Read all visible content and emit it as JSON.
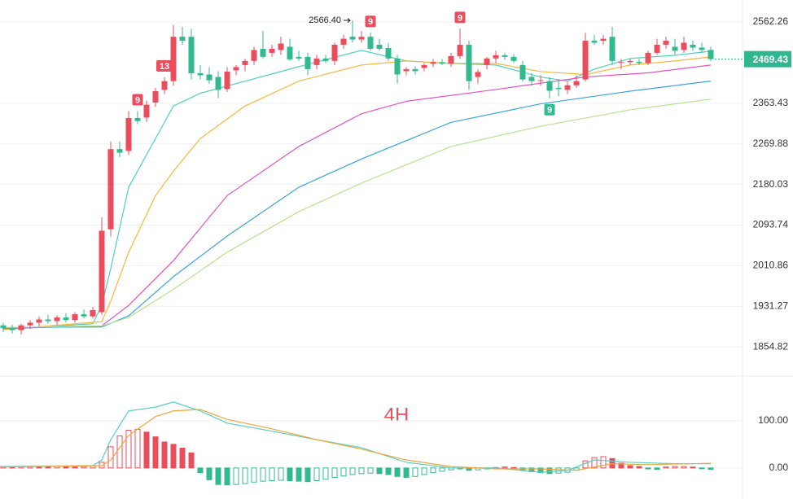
{
  "chart_data": [
    {
      "type": "candlestick",
      "scale": "log",
      "grid": true,
      "up_color": "#eb4d5c",
      "down_color": "#33b98f",
      "ylim": [
        1812,
        2619
      ],
      "yticks": [
        2562.26,
        2363.43,
        2269.88,
        2180.03,
        2093.74,
        2010.86,
        1931.27,
        1854.82
      ],
      "last_price": 2469.43,
      "last_price_color": "#2fb68e",
      "high_label": {
        "index": 39,
        "value": 2566.4,
        "label": "2566.40"
      },
      "markers": [
        {
          "index": 15,
          "text": "9",
          "position": "above",
          "color": "#eb4d5c"
        },
        {
          "index": 18,
          "text": "13",
          "position": "above",
          "color": "#eb4d5c"
        },
        {
          "index": 41,
          "text": "9",
          "position": "above",
          "color": "#eb4d5c"
        },
        {
          "index": 51,
          "text": "9",
          "position": "above",
          "color": "#eb4d5c"
        },
        {
          "index": 61,
          "text": "9",
          "position": "below",
          "color": "#33b98f"
        }
      ],
      "candles": [
        [
          1895,
          1900,
          1882,
          1890
        ],
        [
          1890,
          1896,
          1880,
          1886
        ],
        [
          1886,
          1898,
          1878,
          1895
        ],
        [
          1895,
          1905,
          1888,
          1900
        ],
        [
          1900,
          1912,
          1893,
          1906
        ],
        [
          1906,
          1915,
          1898,
          1903
        ],
        [
          1903,
          1914,
          1896,
          1910
        ],
        [
          1910,
          1918,
          1900,
          1905
        ],
        [
          1905,
          1920,
          1900,
          1916
        ],
        [
          1916,
          1925,
          1908,
          1912
        ],
        [
          1912,
          1930,
          1908,
          1924
        ],
        [
          1920,
          2110,
          1915,
          2082
        ],
        [
          2085,
          2275,
          2070,
          2258
        ],
        [
          2258,
          2275,
          2240,
          2250
        ],
        [
          2254,
          2345,
          2245,
          2329
        ],
        [
          2329,
          2345,
          2315,
          2322
        ],
        [
          2330,
          2370,
          2320,
          2360
        ],
        [
          2365,
          2400,
          2355,
          2392
        ],
        [
          2395,
          2425,
          2385,
          2416
        ],
        [
          2416,
          2555,
          2405,
          2525
        ],
        [
          2525,
          2550,
          2505,
          2515
        ],
        [
          2525,
          2545,
          2420,
          2435
        ],
        [
          2435,
          2455,
          2420,
          2430
        ],
        [
          2432,
          2450,
          2410,
          2418
        ],
        [
          2426,
          2440,
          2375,
          2395
        ],
        [
          2397,
          2450,
          2390,
          2439
        ],
        [
          2442,
          2455,
          2430,
          2450
        ],
        [
          2455,
          2470,
          2440,
          2465
        ],
        [
          2465,
          2500,
          2455,
          2492
        ],
        [
          2495,
          2540,
          2470,
          2475
        ],
        [
          2485,
          2505,
          2475,
          2495
        ],
        [
          2492,
          2525,
          2480,
          2508
        ],
        [
          2500,
          2520,
          2465,
          2469
        ],
        [
          2475,
          2490,
          2465,
          2471
        ],
        [
          2475,
          2485,
          2430,
          2445
        ],
        [
          2455,
          2480,
          2445,
          2471
        ],
        [
          2471,
          2480,
          2460,
          2465
        ],
        [
          2465,
          2510,
          2455,
          2505
        ],
        [
          2505,
          2530,
          2495,
          2520
        ],
        [
          2525,
          2566.4,
          2510,
          2518
        ],
        [
          2518,
          2540,
          2510,
          2525
        ],
        [
          2525,
          2535,
          2490,
          2495
        ],
        [
          2505,
          2520,
          2490,
          2495
        ],
        [
          2497,
          2510,
          2465,
          2471
        ],
        [
          2471,
          2480,
          2410,
          2432
        ],
        [
          2440,
          2450,
          2430,
          2445
        ],
        [
          2445,
          2452,
          2432,
          2440
        ],
        [
          2448,
          2460,
          2440,
          2455
        ],
        [
          2458,
          2470,
          2450,
          2462
        ],
        [
          2462,
          2470,
          2455,
          2458
        ],
        [
          2458,
          2485,
          2450,
          2477
        ],
        [
          2477,
          2545,
          2470,
          2505
        ],
        [
          2505,
          2515,
          2395,
          2416
        ],
        [
          2426,
          2445,
          2410,
          2438
        ],
        [
          2455,
          2475,
          2445,
          2471
        ],
        [
          2471,
          2490,
          2460,
          2479
        ],
        [
          2479,
          2485,
          2468,
          2475
        ],
        [
          2475,
          2482,
          2460,
          2465
        ],
        [
          2455,
          2465,
          2415,
          2420
        ],
        [
          2426,
          2435,
          2405,
          2416
        ],
        [
          2416,
          2430,
          2405,
          2418
        ],
        [
          2416,
          2425,
          2375,
          2393
        ],
        [
          2400,
          2420,
          2380,
          2397
        ],
        [
          2395,
          2415,
          2385,
          2406
        ],
        [
          2406,
          2430,
          2400,
          2416
        ],
        [
          2420,
          2535,
          2415,
          2515
        ],
        [
          2515,
          2530,
          2505,
          2510
        ],
        [
          2515,
          2530,
          2505,
          2520
        ],
        [
          2525,
          2550,
          2455,
          2465
        ],
        [
          2460,
          2470,
          2445,
          2462
        ],
        [
          2462,
          2470,
          2455,
          2465
        ],
        [
          2463,
          2470,
          2455,
          2460
        ],
        [
          2460,
          2490,
          2455,
          2485
        ],
        [
          2485,
          2520,
          2480,
          2505
        ],
        [
          2505,
          2525,
          2495,
          2515
        ],
        [
          2500,
          2520,
          2480,
          2490
        ],
        [
          2492,
          2525,
          2485,
          2510
        ],
        [
          2505,
          2515,
          2490,
          2498
        ],
        [
          2498,
          2510,
          2485,
          2492
        ],
        [
          2492,
          2500,
          2465,
          2469.43
        ]
      ],
      "ma": [
        {
          "color": "#4fd0bf",
          "x": [
            0,
            10,
            11,
            12,
            14,
            17,
            19,
            22,
            27,
            33,
            40,
            45,
            50,
            55,
            60,
            63,
            66,
            70,
            75,
            79
          ],
          "values": [
            1887,
            1898,
            1933,
            2005,
            2174,
            2282,
            2357,
            2387,
            2416,
            2451,
            2491,
            2465,
            2459,
            2455,
            2426,
            2416,
            2445,
            2471,
            2479,
            2489
          ]
        },
        {
          "color": "#f5b83d",
          "x": [
            0,
            11,
            12,
            14,
            17,
            19,
            22,
            27,
            33,
            40,
            45,
            50,
            55,
            60,
            65,
            70,
            75,
            79
          ],
          "values": [
            1887,
            1902,
            1941,
            2038,
            2156,
            2209,
            2282,
            2357,
            2416,
            2455,
            2465,
            2459,
            2459,
            2439,
            2432,
            2455,
            2465,
            2475
          ]
        },
        {
          "color": "#e353c2",
          "x": [
            0,
            11,
            14,
            19,
            25,
            33,
            40,
            45,
            55,
            65,
            72,
            79
          ],
          "values": [
            1889,
            1894,
            1933,
            2021,
            2156,
            2264,
            2339,
            2368,
            2396,
            2426,
            2436,
            2455
          ]
        },
        {
          "color": "#3aa6dd",
          "x": [
            0,
            11,
            14,
            19,
            25,
            33,
            40,
            50,
            60,
            70,
            79
          ],
          "values": [
            1891,
            1892,
            1913,
            1989,
            2071,
            2174,
            2236,
            2319,
            2362,
            2392,
            2416
          ]
        },
        {
          "color": "#b9e190",
          "x": [
            0,
            11,
            14,
            19,
            25,
            33,
            40,
            50,
            60,
            70,
            79
          ],
          "values": [
            1891,
            1894,
            1910,
            1964,
            2038,
            2122,
            2183,
            2264,
            2310,
            2348,
            2373
          ]
        }
      ]
    },
    {
      "type": "macd",
      "title": "4H",
      "grid": true,
      "up_color": "#eb4d5c",
      "down_color": "#33b98f",
      "ylim": [
        -52,
        181
      ],
      "yticks": [
        {
          "value": 100,
          "label": "100.00"
        },
        {
          "value": 0,
          "label": "0.00"
        }
      ],
      "histogram": [
        3,
        2,
        3,
        4,
        3,
        2,
        4,
        3,
        2,
        3,
        5,
        12,
        45,
        68,
        80,
        82,
        76,
        66,
        55,
        50,
        42,
        32,
        -10,
        -25,
        -35,
        -36,
        -35,
        -33,
        -30,
        -28,
        -27,
        -26,
        -27,
        -28,
        -29,
        -27,
        -24,
        -20,
        -17,
        -14,
        -12,
        -11,
        -12,
        -14,
        -18,
        -20,
        -18,
        -14,
        -10,
        -7,
        -4,
        -2,
        -5,
        -4,
        -2,
        1,
        2,
        1,
        -4,
        -8,
        -10,
        -12,
        -11,
        -9,
        -5,
        15,
        22,
        24,
        20,
        10,
        5,
        3,
        -2,
        -3,
        2,
        3,
        3,
        2,
        -1,
        -3
      ],
      "lines": [
        {
          "color": "#56d0c0",
          "x": [
            0,
            10,
            11,
            12,
            14,
            17,
            19,
            22,
            25,
            30,
            35,
            40,
            45,
            50,
            55,
            60,
            63,
            66,
            70,
            75,
            79
          ],
          "values": [
            3,
            5,
            17,
            60,
            121,
            129,
            140,
            121,
            95,
            78,
            60,
            43,
            12,
            0,
            0,
            -9,
            -5,
            17,
            12,
            9,
            9
          ]
        },
        {
          "color": "#f3a53b",
          "x": [
            0,
            11,
            12,
            14,
            17,
            19,
            22,
            25,
            30,
            35,
            40,
            45,
            50,
            55,
            60,
            64,
            68,
            72,
            79
          ],
          "values": [
            2,
            5,
            17,
            69,
            109,
            121,
            124,
            103,
            83,
            60,
            40,
            17,
            3,
            -2,
            -2,
            -5,
            9,
            7,
            10
          ]
        }
      ]
    }
  ]
}
